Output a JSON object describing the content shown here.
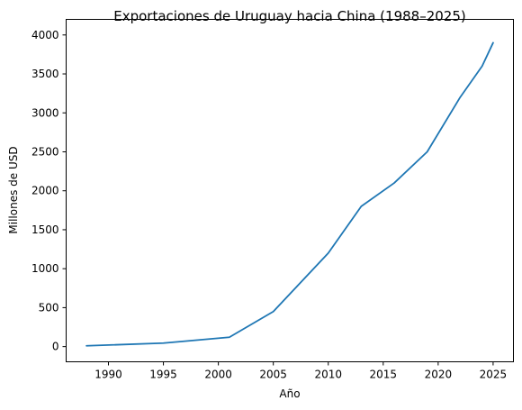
{
  "chart_data": {
    "type": "line",
    "title": "Exportaciones de Uruguay hacia China (1988–2025)",
    "xlabel": "Año",
    "ylabel": "Millones de USD",
    "xlim": [
      1986.15,
      2026.85
    ],
    "ylim": [
      -195,
      4200
    ],
    "xticks": [
      1990,
      1995,
      2000,
      2005,
      2010,
      2015,
      2020,
      2025
    ],
    "yticks": [
      0,
      500,
      1000,
      1500,
      2000,
      2500,
      3000,
      3500,
      4000
    ],
    "grid": false,
    "series": [
      {
        "color": "#1f77b4",
        "x": [
          1988,
          1995,
          2001,
          2005,
          2010,
          2013,
          2016,
          2019,
          2022,
          2024,
          2025
        ],
        "y": [
          10,
          45,
          120,
          450,
          1200,
          1800,
          2100,
          2500,
          3200,
          3600,
          3900
        ]
      }
    ]
  }
}
